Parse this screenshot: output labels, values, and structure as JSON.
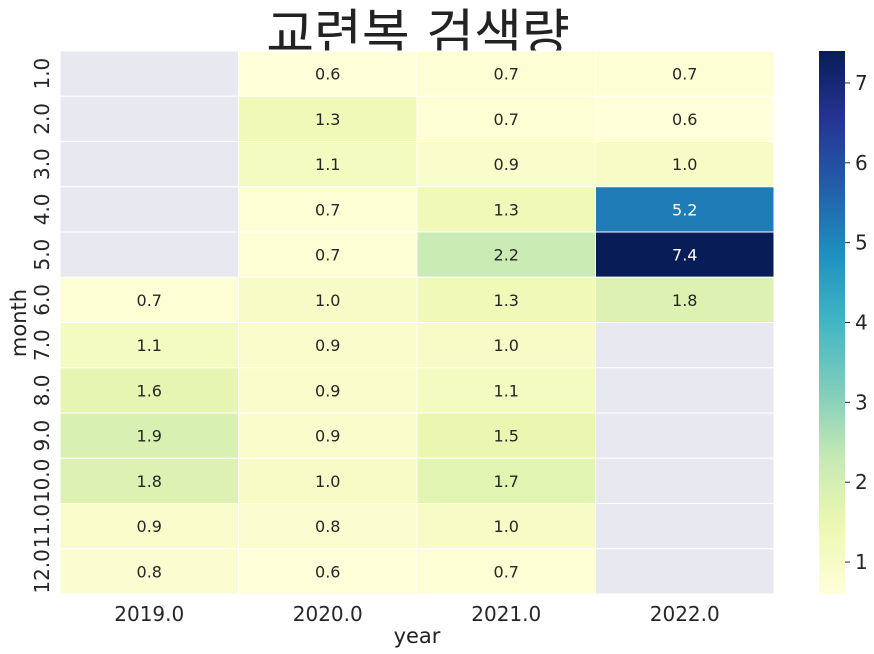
{
  "chart_data": {
    "type": "heatmap",
    "title": "교련복 검색량",
    "xlabel": "year",
    "ylabel": "month",
    "x_categories": [
      "2019.0",
      "2020.0",
      "2021.0",
      "2022.0"
    ],
    "y_categories": [
      "1.0",
      "2.0",
      "3.0",
      "4.0",
      "5.0",
      "6.0",
      "7.0",
      "8.0",
      "9.0",
      "10.0",
      "11.0",
      "12.0"
    ],
    "values": [
      [
        null,
        0.6,
        0.7,
        0.7
      ],
      [
        null,
        1.3,
        0.7,
        0.6
      ],
      [
        null,
        1.1,
        0.9,
        1.0
      ],
      [
        null,
        0.7,
        1.3,
        5.2
      ],
      [
        null,
        0.7,
        2.2,
        7.4
      ],
      [
        0.7,
        1.0,
        1.3,
        1.8
      ],
      [
        1.1,
        0.9,
        1.0,
        null
      ],
      [
        1.6,
        0.9,
        1.1,
        null
      ],
      [
        1.9,
        0.9,
        1.5,
        null
      ],
      [
        1.8,
        1.0,
        1.7,
        null
      ],
      [
        0.9,
        0.8,
        1.0,
        null
      ],
      [
        0.8,
        0.6,
        0.7,
        null
      ]
    ],
    "value_labels": [
      [
        "",
        "0.6",
        "0.7",
        "0.7"
      ],
      [
        "",
        "1.3",
        "0.7",
        "0.6"
      ],
      [
        "",
        "1.1",
        "0.9",
        "1.0"
      ],
      [
        "",
        "0.7",
        "1.3",
        "5.2"
      ],
      [
        "",
        "0.7",
        "2.2",
        "7.4"
      ],
      [
        "0.7",
        "1.0",
        "1.3",
        "1.8"
      ],
      [
        "1.1",
        "0.9",
        "1.0",
        ""
      ],
      [
        "1.6",
        "0.9",
        "1.1",
        ""
      ],
      [
        "1.9",
        "0.9",
        "1.5",
        ""
      ],
      [
        "1.8",
        "1.0",
        "1.7",
        ""
      ],
      [
        "0.9",
        "0.8",
        "1.0",
        ""
      ],
      [
        "0.8",
        "0.6",
        "0.7",
        ""
      ]
    ],
    "colormap": "YlGnBu",
    "vmin": 0.6,
    "vmax": 7.4,
    "missing_color": "#e8e8f0",
    "colorbar_ticks": [
      1,
      2,
      3,
      4,
      5,
      6,
      7
    ],
    "colorbar_tick_labels": [
      "1",
      "2",
      "3",
      "4",
      "5",
      "6",
      "7"
    ],
    "grid": true,
    "legend": "colorbar-right"
  }
}
